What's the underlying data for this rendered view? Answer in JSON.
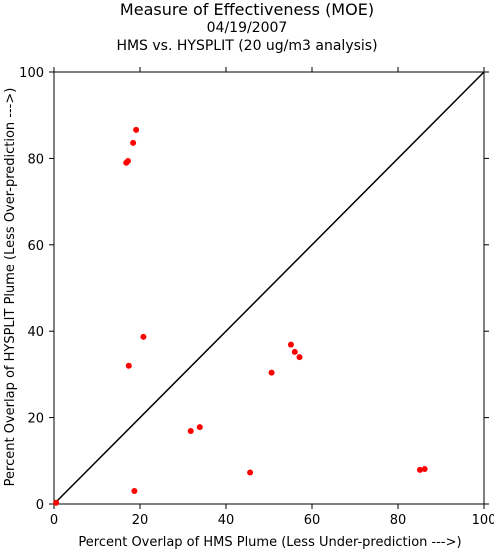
{
  "chart_data": {
    "type": "scatter",
    "title": "Measure of Effectiveness (MOE)",
    "subtitle_date": "04/19/2007",
    "subtitle_analysis": "HMS vs. HYSPLIT  (20 ug/m3 analysis)",
    "xlabel": "Percent Overlap of HMS Plume (Less Under-prediction --->)",
    "ylabel": "Percent Overlap of HYSPLIT Plume (Less Over-prediction --->)",
    "xlim": [
      0,
      100
    ],
    "ylim": [
      0,
      100
    ],
    "xticks": [
      "0",
      "20",
      "40",
      "60",
      "80",
      "100"
    ],
    "yticks": [
      "0",
      "20",
      "40",
      "60",
      "80",
      "100"
    ],
    "reference_line": "1:1 diagonal",
    "marker_color": "#ff0000",
    "line_color": "#000000",
    "points": [
      {
        "x": 0.5,
        "y": 0.3
      },
      {
        "x": 16.8,
        "y": 79.0
      },
      {
        "x": 17.2,
        "y": 79.4
      },
      {
        "x": 18.4,
        "y": 83.6
      },
      {
        "x": 19.1,
        "y": 86.6
      },
      {
        "x": 17.4,
        "y": 32.0
      },
      {
        "x": 20.8,
        "y": 38.7
      },
      {
        "x": 18.7,
        "y": 3.0
      },
      {
        "x": 31.8,
        "y": 16.9
      },
      {
        "x": 33.9,
        "y": 17.8
      },
      {
        "x": 45.6,
        "y": 7.3
      },
      {
        "x": 50.6,
        "y": 30.4
      },
      {
        "x": 55.1,
        "y": 36.9
      },
      {
        "x": 56.0,
        "y": 35.2
      },
      {
        "x": 57.1,
        "y": 34.0
      },
      {
        "x": 85.1,
        "y": 7.9
      },
      {
        "x": 86.2,
        "y": 8.1
      }
    ]
  }
}
